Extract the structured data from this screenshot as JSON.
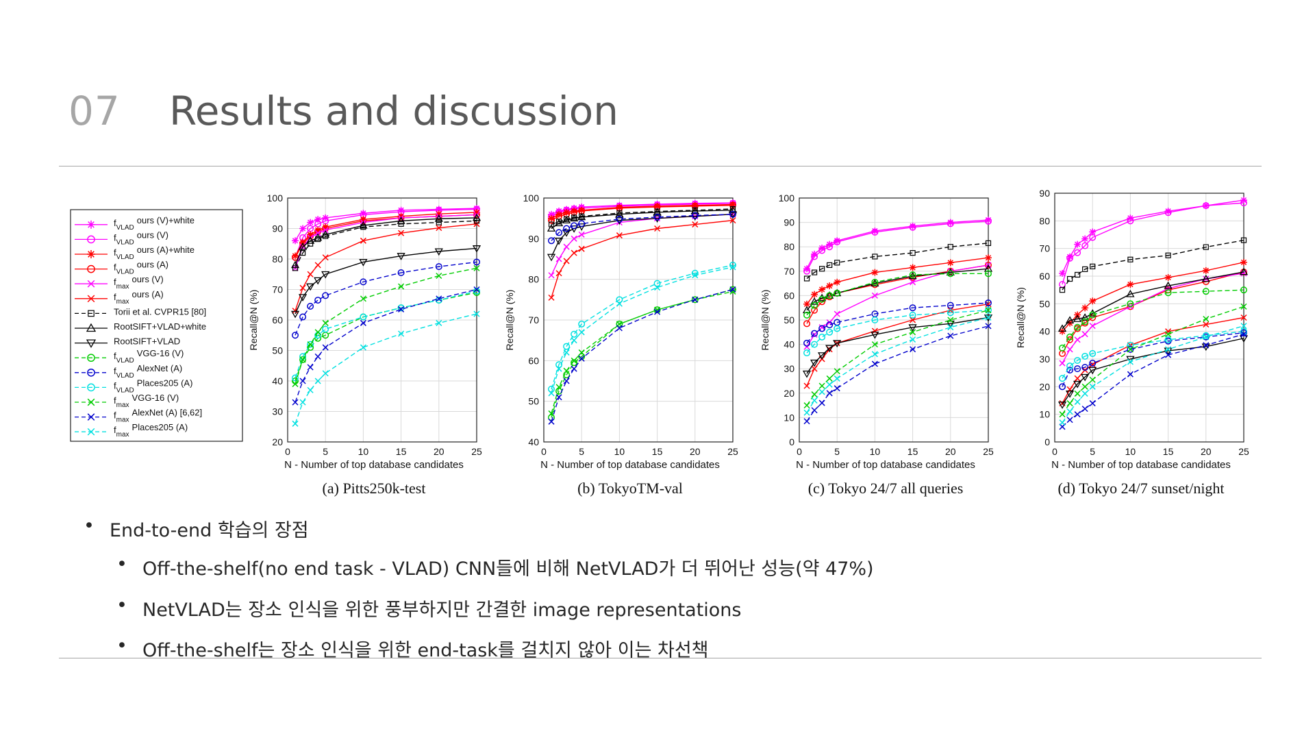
{
  "slide": {
    "number": "07",
    "title": "Results and discussion"
  },
  "bullets": [
    {
      "marker": "•",
      "text": "End-to-end 학습의 장점"
    },
    {
      "marker": "•",
      "text": "Off-the-shelf(no end task - VLAD) CNN들에 비해 NetVLAD가 더 뛰어난 성능(약 47%)"
    },
    {
      "marker": "•",
      "text": "NetVLAD는 장소 인식을 위한 풍부하지만 간결한 image representations"
    },
    {
      "marker": "•",
      "text": "Off-the-shelf는 장소 인식을 위한 end-task를 걸치지 않아 이는 차선책"
    }
  ],
  "legend": {
    "entries": [
      {
        "base": "f",
        "sub": "VLAD",
        "text": "ours (V)+white",
        "color": "#ff00ff",
        "marker": "asterisk",
        "dash": "solid"
      },
      {
        "base": "f",
        "sub": "VLAD",
        "text": "ours (V)",
        "color": "#ff00ff",
        "marker": "circle",
        "dash": "solid"
      },
      {
        "base": "f",
        "sub": "VLAD",
        "text": "ours (A)+white",
        "color": "#ff0000",
        "marker": "asterisk",
        "dash": "solid"
      },
      {
        "base": "f",
        "sub": "VLAD",
        "text": "ours (A)",
        "color": "#ff0000",
        "marker": "circle",
        "dash": "solid"
      },
      {
        "base": "f",
        "sub": "max",
        "text": "ours (V)",
        "color": "#ff00ff",
        "marker": "x",
        "dash": "solid"
      },
      {
        "base": "f",
        "sub": "max",
        "text": "ours (A)",
        "color": "#ff0000",
        "marker": "x",
        "dash": "solid"
      },
      {
        "base": "",
        "sub": "",
        "text": "Torii et al. CVPR15 [80]",
        "color": "#000000",
        "marker": "square",
        "dash": "dashed"
      },
      {
        "base": "",
        "sub": "",
        "text": "RootSIFT+VLAD+white",
        "color": "#000000",
        "marker": "triangle-up",
        "dash": "solid"
      },
      {
        "base": "",
        "sub": "",
        "text": "RootSIFT+VLAD",
        "color": "#000000",
        "marker": "triangle-down",
        "dash": "solid"
      },
      {
        "base": "f",
        "sub": "VLAD",
        "text": "VGG-16 (V)",
        "color": "#00cc00",
        "marker": "circle",
        "dash": "dashed"
      },
      {
        "base": "f",
        "sub": "VLAD",
        "text": "AlexNet (A)",
        "color": "#0000cc",
        "marker": "circle",
        "dash": "dashed"
      },
      {
        "base": "f",
        "sub": "VLAD",
        "text": "Places205 (A)",
        "color": "#00e0e0",
        "marker": "circle",
        "dash": "dashed"
      },
      {
        "base": "f",
        "sub": "max",
        "text": "VGG-16 (V)",
        "color": "#00cc00",
        "marker": "x",
        "dash": "dashed"
      },
      {
        "base": "f",
        "sub": "max",
        "text": "AlexNet (A) [6,62]",
        "color": "#0000cc",
        "marker": "x",
        "dash": "dashed"
      },
      {
        "base": "f",
        "sub": "max",
        "text": "Places205 (A)",
        "color": "#00e0e0",
        "marker": "x",
        "dash": "dashed"
      }
    ]
  },
  "chart_data": [
    {
      "type": "line",
      "title": "(a) Pitts250k-test",
      "xlabel": "N - Number of top database candidates",
      "ylabel": "Recall@N (%)",
      "xlim": [
        0,
        25
      ],
      "ylim": [
        20,
        100
      ],
      "xticks": [
        0,
        5,
        10,
        15,
        20,
        25
      ],
      "yticks": [
        20,
        30,
        40,
        50,
        60,
        70,
        80,
        90,
        100
      ],
      "grid": true,
      "x": [
        1,
        2,
        3,
        4,
        5,
        10,
        15,
        20,
        25
      ],
      "series": [
        {
          "values": [
            86,
            90,
            92,
            93,
            93.5,
            95,
            96,
            96.3,
            96.6
          ]
        },
        {
          "values": [
            80.5,
            87,
            90,
            91.5,
            92.5,
            94.5,
            95.5,
            96,
            96.3
          ]
        },
        {
          "values": [
            81,
            85.5,
            88,
            89.5,
            90.5,
            93,
            94,
            94.8,
            95.3
          ]
        },
        {
          "values": [
            80.5,
            85,
            87.5,
            89,
            90,
            92.5,
            93.5,
            94,
            94.5
          ]
        },
        {
          "values": [
            77,
            84,
            87,
            88.5,
            89.5,
            92,
            93.5,
            94,
            94.5
          ]
        },
        {
          "values": [
            63,
            70.5,
            75,
            78,
            80.5,
            86,
            88.5,
            90.2,
            91.5
          ]
        },
        {
          "values": [
            77,
            82,
            85,
            86.5,
            87.5,
            90.5,
            91.5,
            92,
            92.5
          ]
        },
        {
          "values": [
            78,
            84,
            86,
            87,
            88,
            91,
            92.5,
            93.2,
            93.5
          ]
        },
        {
          "values": [
            62,
            67.5,
            71,
            73,
            75,
            79,
            81,
            82.5,
            83.5
          ]
        },
        {
          "values": [
            40,
            47,
            51,
            54,
            55,
            61,
            64,
            66.5,
            69
          ]
        },
        {
          "values": [
            55,
            61,
            64.5,
            66.5,
            68,
            72.5,
            75.5,
            77.5,
            79
          ]
        },
        {
          "values": [
            41,
            48,
            52,
            55,
            57,
            61,
            64,
            66.5,
            69.5
          ]
        },
        {
          "values": [
            39,
            47,
            52,
            56,
            59,
            67,
            71,
            74.5,
            77
          ]
        },
        {
          "values": [
            33,
            40,
            44.5,
            48,
            51,
            59,
            63.5,
            67,
            70
          ]
        },
        {
          "values": [
            26,
            33,
            37,
            40,
            42.5,
            51,
            55.5,
            59,
            62
          ]
        }
      ]
    },
    {
      "type": "line",
      "title": "(b) TokyoTM-val",
      "xlabel": "N - Number of top database candidates",
      "ylabel": "Recall@N (%)",
      "xlim": [
        0,
        25
      ],
      "ylim": [
        40,
        100
      ],
      "xticks": [
        0,
        5,
        10,
        15,
        20,
        25
      ],
      "yticks": [
        40,
        50,
        60,
        70,
        80,
        90,
        100
      ],
      "grid": true,
      "x": [
        1,
        2,
        3,
        4,
        5,
        10,
        15,
        20,
        25
      ],
      "series": [
        {
          "values": [
            96,
            96.8,
            97.2,
            97.5,
            97.8,
            98.2,
            98.5,
            98.7,
            98.8
          ]
        },
        {
          "values": [
            95.5,
            96.5,
            97,
            97.3,
            97.5,
            98,
            98.3,
            98.5,
            98.7
          ]
        },
        {
          "values": [
            95,
            96,
            96.5,
            96.8,
            97,
            97.7,
            98,
            98.2,
            98.4
          ]
        },
        {
          "values": [
            94.5,
            95.5,
            96,
            96.5,
            96.8,
            97.5,
            97.8,
            98,
            98.2
          ]
        },
        {
          "values": [
            81,
            85,
            88,
            90,
            91,
            94,
            95,
            95.5,
            96
          ]
        },
        {
          "values": [
            75.5,
            81.5,
            84.5,
            86.5,
            87.5,
            90.8,
            92.5,
            93.5,
            94.5
          ]
        },
        {
          "values": [
            93.5,
            94.2,
            94.8,
            95.2,
            95.5,
            96.3,
            96.7,
            97,
            97.3
          ]
        },
        {
          "values": [
            92.5,
            93.8,
            94.5,
            95,
            95.3,
            96,
            96.5,
            96.8,
            97
          ]
        },
        {
          "values": [
            85.5,
            89.5,
            91.5,
            92.5,
            93,
            94.5,
            95,
            95.5,
            96
          ]
        },
        {
          "values": [
            46,
            52.5,
            56.5,
            59.5,
            61,
            69,
            72.5,
            75,
            77.5
          ]
        },
        {
          "values": [
            89.5,
            91.5,
            92.5,
            93.2,
            93.7,
            94.8,
            95.3,
            95.7,
            96
          ]
        },
        {
          "values": [
            53,
            59,
            63.5,
            66.5,
            69,
            75,
            79,
            81.5,
            83.5
          ]
        },
        {
          "values": [
            47,
            53.5,
            57.5,
            60,
            62,
            69,
            72.5,
            75,
            77
          ]
        },
        {
          "values": [
            45,
            51,
            55,
            58,
            60.5,
            68,
            72,
            75,
            77.5
          ]
        },
        {
          "values": [
            52,
            58,
            62,
            65,
            67,
            74,
            78,
            81,
            83
          ]
        }
      ]
    },
    {
      "type": "line",
      "title": "(c) Tokyo 24/7 all queries",
      "xlabel": "N - Number of top database candidates",
      "ylabel": "Recall@N (%)",
      "xlim": [
        0,
        25
      ],
      "ylim": [
        0,
        100
      ],
      "xticks": [
        0,
        5,
        10,
        15,
        20,
        25
      ],
      "yticks": [
        0,
        10,
        20,
        30,
        40,
        50,
        60,
        70,
        80,
        90,
        100
      ],
      "grid": true,
      "x": [
        1,
        2,
        3,
        4,
        5,
        10,
        15,
        20,
        25
      ],
      "series": [
        {
          "values": [
            71,
            77,
            79.5,
            81,
            82.5,
            86.5,
            88.5,
            90,
            91
          ]
        },
        {
          "values": [
            70,
            76,
            78.5,
            80,
            82,
            86,
            88,
            89.5,
            90.5
          ]
        },
        {
          "values": [
            56.5,
            60.5,
            62.5,
            64,
            65.5,
            69.5,
            71.5,
            73.5,
            75.5
          ]
        },
        {
          "values": [
            48.5,
            54,
            57.5,
            59.5,
            61,
            64.5,
            67.5,
            70,
            72.5
          ]
        },
        {
          "values": [
            39,
            44,
            47,
            49,
            52.5,
            60,
            65.5,
            70,
            72.5
          ]
        },
        {
          "values": [
            23,
            30,
            34,
            38,
            40.5,
            45.5,
            50,
            54,
            56.5
          ]
        },
        {
          "values": [
            67,
            69.5,
            71,
            72.5,
            73.5,
            76,
            77.5,
            80,
            81.5
          ]
        },
        {
          "values": [
            54,
            57.5,
            59,
            60,
            61,
            65,
            68,
            69.5,
            71
          ]
        },
        {
          "values": [
            28,
            32.5,
            35.5,
            38.5,
            40.5,
            44,
            47,
            48.5,
            51
          ]
        },
        {
          "values": [
            52,
            56,
            58.5,
            60,
            61,
            65.5,
            68.5,
            69,
            69
          ]
        },
        {
          "values": [
            40.5,
            44.5,
            46.5,
            48,
            49,
            52.5,
            55,
            56,
            57
          ]
        },
        {
          "values": [
            36.5,
            40,
            43,
            45,
            46.5,
            50,
            52,
            53,
            54
          ]
        },
        {
          "values": [
            15,
            19.5,
            23,
            26,
            29,
            40,
            45,
            50,
            54
          ]
        },
        {
          "values": [
            8.5,
            13,
            16,
            20,
            22,
            32,
            38,
            43.5,
            47.5
          ]
        },
        {
          "values": [
            12,
            17,
            20.5,
            23.5,
            26,
            36,
            42,
            47,
            51
          ]
        }
      ]
    },
    {
      "type": "line",
      "title": "(d) Tokyo 24/7 sunset/night",
      "xlabel": "N - Number of top database candidates",
      "ylabel": "Recall@N (%)",
      "xlim": [
        0,
        25
      ],
      "ylim": [
        0,
        90
      ],
      "xticks": [
        0,
        5,
        10,
        15,
        20,
        25
      ],
      "yticks": [
        0,
        10,
        20,
        30,
        40,
        50,
        60,
        70,
        80,
        90
      ],
      "grid": true,
      "x": [
        1,
        2,
        3,
        4,
        5,
        10,
        15,
        20,
        25
      ],
      "series": [
        {
          "values": [
            61,
            67,
            71.5,
            73.5,
            76,
            81,
            83.5,
            85.5,
            87.5
          ]
        },
        {
          "values": [
            57,
            66.5,
            68.5,
            71,
            74,
            80,
            83,
            85.5,
            86.5
          ]
        },
        {
          "values": [
            40,
            43,
            46,
            48.5,
            51,
            57,
            59.5,
            62,
            65
          ]
        },
        {
          "values": [
            32,
            37,
            41,
            43,
            45,
            49,
            55,
            58,
            61.5
          ]
        },
        {
          "values": [
            28.5,
            33.5,
            37,
            39,
            42,
            49,
            55.5,
            59,
            61
          ]
        },
        {
          "values": [
            14,
            19,
            23,
            26,
            28,
            35,
            40,
            42.5,
            45
          ]
        },
        {
          "values": [
            55,
            59,
            60.5,
            62.5,
            63.5,
            66,
            67.5,
            70.5,
            73
          ]
        },
        {
          "values": [
            41,
            44,
            44.5,
            45,
            46.5,
            53.5,
            56.5,
            59,
            61.5
          ]
        },
        {
          "values": [
            13.5,
            17.5,
            21,
            23.5,
            26,
            30,
            33,
            34.5,
            37.5
          ]
        },
        {
          "values": [
            34,
            38,
            41.5,
            43.5,
            46,
            50,
            54,
            54.5,
            55
          ]
        },
        {
          "values": [
            20,
            26,
            26.5,
            27,
            28.5,
            33.5,
            36.5,
            38,
            39.5
          ]
        },
        {
          "values": [
            23,
            27.5,
            29.5,
            31,
            32,
            35,
            37,
            38.5,
            40
          ]
        },
        {
          "values": [
            10,
            14,
            17.5,
            20,
            22.5,
            33.5,
            39,
            44.5,
            49
          ]
        },
        {
          "values": [
            5.5,
            8,
            10,
            12,
            14,
            24.5,
            31.5,
            35,
            39
          ]
        },
        {
          "values": [
            7,
            11,
            14.5,
            17.5,
            20,
            29,
            33.5,
            38,
            42
          ]
        }
      ]
    }
  ]
}
